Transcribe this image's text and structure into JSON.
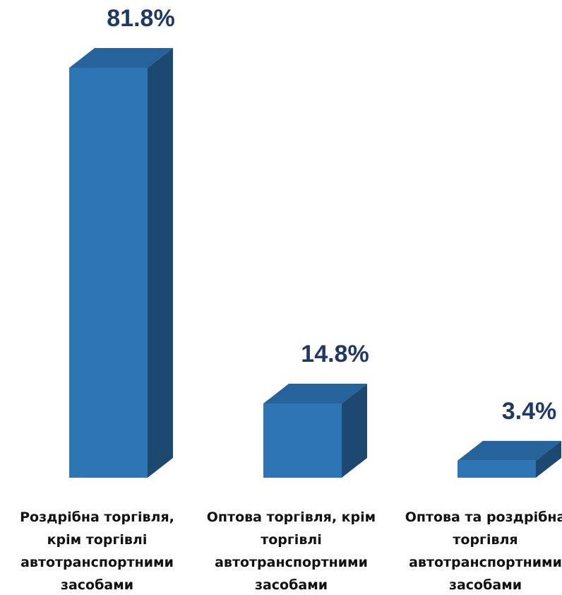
{
  "chart_data": {
    "type": "bar3d",
    "categories": [
      "Роздрібна торгівля, крім торгівлі автотранспортними засобами",
      "Оптова торгівля, крім торгівлі автотранспортними засобами",
      "Оптова та роздрібна торгівля автотранспортними засобами"
    ],
    "values": [
      81.8,
      14.8,
      3.4
    ],
    "value_labels": [
      "81.8%",
      "14.8%",
      "3.4%"
    ],
    "color": "#2e75b6"
  }
}
